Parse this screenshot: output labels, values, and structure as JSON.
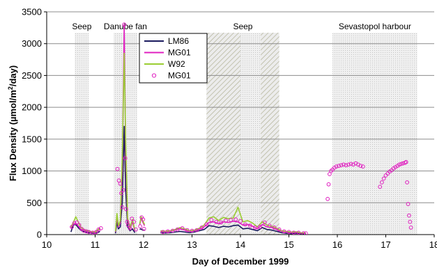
{
  "chart_data": {
    "type": "line",
    "xlabel": "Day of December 1999",
    "ylabel_main": "Flux Density (µmol/m",
    "ylabel_sup": "2",
    "ylabel_end": "/day)",
    "xlim": [
      10,
      18
    ],
    "ylim": [
      0,
      3500
    ],
    "x_ticks": [
      "10",
      "11",
      "12",
      "13",
      "14",
      "15",
      "16",
      "17",
      "18"
    ],
    "y_ticks": [
      "0",
      "500",
      "1000",
      "1500",
      "2000",
      "2500",
      "3000",
      "3500"
    ],
    "grid": "horizontal",
    "legend_position": "upper-center",
    "regions": [
      {
        "label": "Seep",
        "x_start": 10.58,
        "x_end": 10.87,
        "pattern": "dotted"
      },
      {
        "label": "Danube fan",
        "x_start": 11.38,
        "x_end": 11.87,
        "pattern": "dotted"
      },
      {
        "label": "Seep",
        "x_start": 13.3,
        "x_end": 14.8,
        "pattern": "hatched"
      },
      {
        "label": "Sevastopol harbour",
        "x_start": 15.9,
        "x_end": 17.65,
        "pattern": "dotted"
      }
    ],
    "series": [
      {
        "name": "LM86",
        "style": "line",
        "color": "#1a1a5e",
        "segments": [
          [
            [
              10.5,
              40
            ],
            [
              10.55,
              150
            ],
            [
              10.6,
              160
            ],
            [
              10.65,
              110
            ],
            [
              10.7,
              70
            ],
            [
              10.75,
              50
            ],
            [
              10.8,
              40
            ],
            [
              10.85,
              30
            ],
            [
              10.9,
              25
            ],
            [
              11.0,
              20
            ],
            [
              11.05,
              30
            ],
            [
              11.1,
              50
            ]
          ],
          [
            [
              11.42,
              20
            ],
            [
              11.45,
              190
            ],
            [
              11.48,
              90
            ],
            [
              11.52,
              120
            ],
            [
              11.56,
              500
            ],
            [
              11.6,
              1700
            ],
            [
              11.63,
              700
            ],
            [
              11.67,
              120
            ],
            [
              11.72,
              60
            ],
            [
              11.77,
              90
            ],
            [
              11.82,
              30
            ]
          ],
          [
            [
              11.92,
              80
            ],
            [
              11.95,
              90
            ],
            [
              11.98,
              70
            ],
            [
              12.02,
              70
            ]
          ],
          [
            [
              12.35,
              30
            ],
            [
              12.45,
              25
            ],
            [
              12.55,
              30
            ],
            [
              12.65,
              40
            ],
            [
              12.75,
              50
            ],
            [
              12.85,
              40
            ],
            [
              12.95,
              30
            ],
            [
              13.05,
              40
            ],
            [
              13.15,
              60
            ],
            [
              13.25,
              80
            ],
            [
              13.35,
              140
            ],
            [
              13.45,
              130
            ],
            [
              13.55,
              110
            ],
            [
              13.65,
              130
            ],
            [
              13.75,
              120
            ],
            [
              13.85,
              140
            ],
            [
              13.95,
              150
            ],
            [
              14.05,
              90
            ],
            [
              14.15,
              100
            ],
            [
              14.25,
              80
            ],
            [
              14.35,
              60
            ],
            [
              14.45,
              110
            ],
            [
              14.55,
              80
            ],
            [
              14.65,
              70
            ],
            [
              14.75,
              50
            ],
            [
              14.85,
              30
            ],
            [
              14.95,
              20
            ],
            [
              15.05,
              15
            ],
            [
              15.15,
              20
            ],
            [
              15.25,
              15
            ],
            [
              15.35,
              10
            ]
          ]
        ]
      },
      {
        "name": "MG01",
        "style": "line",
        "color": "#e020c0",
        "segments": [
          [
            [
              10.5,
              100
            ],
            [
              10.55,
              170
            ],
            [
              10.6,
              180
            ],
            [
              10.65,
              140
            ],
            [
              10.7,
              90
            ],
            [
              10.75,
              70
            ],
            [
              10.8,
              60
            ],
            [
              10.85,
              50
            ],
            [
              10.9,
              40
            ],
            [
              11.0,
              30
            ],
            [
              11.05,
              60
            ],
            [
              11.1,
              90
            ]
          ],
          [
            [
              11.42,
              40
            ],
            [
              11.45,
              280
            ],
            [
              11.48,
              120
            ],
            [
              11.52,
              180
            ],
            [
              11.56,
              1000
            ],
            [
              11.6,
              3300
            ],
            [
              11.63,
              1300
            ],
            [
              11.67,
              220
            ],
            [
              11.72,
              90
            ],
            [
              11.77,
              200
            ],
            [
              11.82,
              60
            ]
          ],
          [
            [
              11.92,
              150
            ],
            [
              11.95,
              260
            ],
            [
              11.98,
              200
            ],
            [
              12.02,
              140
            ]
          ],
          [
            [
              12.35,
              50
            ],
            [
              12.45,
              45
            ],
            [
              12.55,
              50
            ],
            [
              12.65,
              70
            ],
            [
              12.75,
              90
            ],
            [
              12.85,
              70
            ],
            [
              12.95,
              50
            ],
            [
              13.05,
              60
            ],
            [
              13.15,
              80
            ],
            [
              13.25,
              120
            ],
            [
              13.35,
              190
            ],
            [
              13.45,
              200
            ],
            [
              13.55,
              170
            ],
            [
              13.65,
              200
            ],
            [
              13.75,
              190
            ],
            [
              13.85,
              210
            ],
            [
              13.95,
              200
            ],
            [
              14.05,
              150
            ],
            [
              14.15,
              160
            ],
            [
              14.25,
              130
            ],
            [
              14.35,
              90
            ],
            [
              14.45,
              160
            ],
            [
              14.55,
              120
            ],
            [
              14.65,
              110
            ],
            [
              14.75,
              80
            ],
            [
              14.85,
              50
            ],
            [
              14.95,
              40
            ],
            [
              15.05,
              30
            ],
            [
              15.15,
              35
            ],
            [
              15.25,
              25
            ],
            [
              15.35,
              20
            ]
          ]
        ]
      },
      {
        "name": "W92",
        "style": "line",
        "color": "#9acd32",
        "segments": [
          [
            [
              10.5,
              120
            ],
            [
              10.55,
              190
            ],
            [
              10.6,
              280
            ],
            [
              10.65,
              200
            ],
            [
              10.7,
              120
            ],
            [
              10.75,
              90
            ],
            [
              10.8,
              70
            ],
            [
              10.85,
              60
            ],
            [
              10.9,
              50
            ],
            [
              11.0,
              40
            ],
            [
              11.05,
              70
            ],
            [
              11.1,
              110
            ]
          ],
          [
            [
              11.42,
              50
            ],
            [
              11.45,
              330
            ],
            [
              11.48,
              140
            ],
            [
              11.52,
              220
            ],
            [
              11.56,
              1200
            ],
            [
              11.6,
              2850
            ],
            [
              11.63,
              1500
            ],
            [
              11.67,
              260
            ],
            [
              11.72,
              110
            ],
            [
              11.77,
              240
            ],
            [
              11.82,
              70
            ]
          ],
          [
            [
              11.92,
              170
            ],
            [
              11.95,
              280
            ],
            [
              11.98,
              220
            ],
            [
              12.02,
              160
            ]
          ],
          [
            [
              12.35,
              60
            ],
            [
              12.45,
              55
            ],
            [
              12.55,
              60
            ],
            [
              12.65,
              80
            ],
            [
              12.75,
              110
            ],
            [
              12.85,
              90
            ],
            [
              12.95,
              60
            ],
            [
              13.05,
              70
            ],
            [
              13.15,
              100
            ],
            [
              13.25,
              150
            ],
            [
              13.35,
              260
            ],
            [
              13.45,
              280
            ],
            [
              13.55,
              220
            ],
            [
              13.65,
              270
            ],
            [
              13.75,
              250
            ],
            [
              13.85,
              260
            ],
            [
              13.95,
              430
            ],
            [
              14.05,
              200
            ],
            [
              14.15,
              220
            ],
            [
              14.25,
              180
            ],
            [
              14.35,
              120
            ],
            [
              14.45,
              200
            ],
            [
              14.55,
              150
            ],
            [
              14.65,
              130
            ],
            [
              14.75,
              100
            ],
            [
              14.85,
              60
            ],
            [
              14.95,
              50
            ],
            [
              15.05,
              40
            ],
            [
              15.15,
              45
            ],
            [
              15.25,
              30
            ],
            [
              15.35,
              25
            ]
          ]
        ]
      },
      {
        "name": "MG01",
        "style": "markers",
        "color": "#e020c0",
        "points": [
          [
            10.52,
            120
          ],
          [
            10.57,
            180
          ],
          [
            10.62,
            190
          ],
          [
            10.67,
            150
          ],
          [
            10.72,
            90
          ],
          [
            10.77,
            60
          ],
          [
            10.82,
            50
          ],
          [
            10.87,
            40
          ],
          [
            10.95,
            30
          ],
          [
            11.02,
            40
          ],
          [
            11.07,
            80
          ],
          [
            11.12,
            100
          ],
          [
            11.46,
            1030
          ],
          [
            11.49,
            850
          ],
          [
            11.52,
            800
          ],
          [
            11.54,
            650
          ],
          [
            11.56,
            430
          ],
          [
            11.58,
            700
          ],
          [
            11.6,
            3300
          ],
          [
            11.62,
            1200
          ],
          [
            11.64,
            400
          ],
          [
            11.66,
            200
          ],
          [
            11.68,
            150
          ],
          [
            11.72,
            100
          ],
          [
            11.76,
            250
          ],
          [
            11.8,
            200
          ],
          [
            11.84,
            80
          ],
          [
            11.93,
            130
          ],
          [
            11.96,
            270
          ],
          [
            11.99,
            240
          ],
          [
            12.01,
            90
          ],
          [
            12.4,
            40
          ],
          [
            12.5,
            50
          ],
          [
            12.6,
            60
          ],
          [
            12.7,
            80
          ],
          [
            12.8,
            100
          ],
          [
            12.9,
            70
          ],
          [
            13.0,
            60
          ],
          [
            13.1,
            70
          ],
          [
            13.2,
            110
          ],
          [
            13.3,
            160
          ],
          [
            13.4,
            230
          ],
          [
            13.5,
            200
          ],
          [
            13.6,
            190
          ],
          [
            13.7,
            220
          ],
          [
            13.8,
            230
          ],
          [
            13.9,
            240
          ],
          [
            14.0,
            210
          ],
          [
            14.1,
            160
          ],
          [
            14.2,
            140
          ],
          [
            14.3,
            110
          ],
          [
            14.4,
            120
          ],
          [
            14.5,
            190
          ],
          [
            14.6,
            140
          ],
          [
            14.7,
            110
          ],
          [
            14.8,
            80
          ],
          [
            14.9,
            50
          ],
          [
            15.0,
            40
          ],
          [
            15.1,
            30
          ],
          [
            15.2,
            30
          ],
          [
            15.3,
            20
          ],
          [
            15.35,
            20
          ],
          [
            15.8,
            560
          ],
          [
            15.82,
            790
          ],
          [
            15.84,
            950
          ],
          [
            15.87,
            1000
          ],
          [
            15.9,
            1020
          ],
          [
            15.94,
            1050
          ],
          [
            15.98,
            1070
          ],
          [
            16.03,
            1080
          ],
          [
            16.08,
            1090
          ],
          [
            16.13,
            1100
          ],
          [
            16.18,
            1090
          ],
          [
            16.23,
            1100
          ],
          [
            16.28,
            1110
          ],
          [
            16.33,
            1100
          ],
          [
            16.38,
            1120
          ],
          [
            16.43,
            1100
          ],
          [
            16.48,
            1080
          ],
          [
            16.53,
            1070
          ],
          [
            16.88,
            750
          ],
          [
            16.92,
            820
          ],
          [
            16.96,
            880
          ],
          [
            17.0,
            930
          ],
          [
            17.04,
            960
          ],
          [
            17.08,
            990
          ],
          [
            17.12,
            1010
          ],
          [
            17.16,
            1040
          ],
          [
            17.2,
            1060
          ],
          [
            17.24,
            1080
          ],
          [
            17.28,
            1100
          ],
          [
            17.32,
            1110
          ],
          [
            17.36,
            1120
          ],
          [
            17.4,
            1130
          ],
          [
            17.42,
            1140
          ],
          [
            17.44,
            820
          ],
          [
            17.46,
            480
          ],
          [
            17.48,
            300
          ],
          [
            17.5,
            200
          ],
          [
            17.52,
            110
          ]
        ]
      }
    ]
  }
}
